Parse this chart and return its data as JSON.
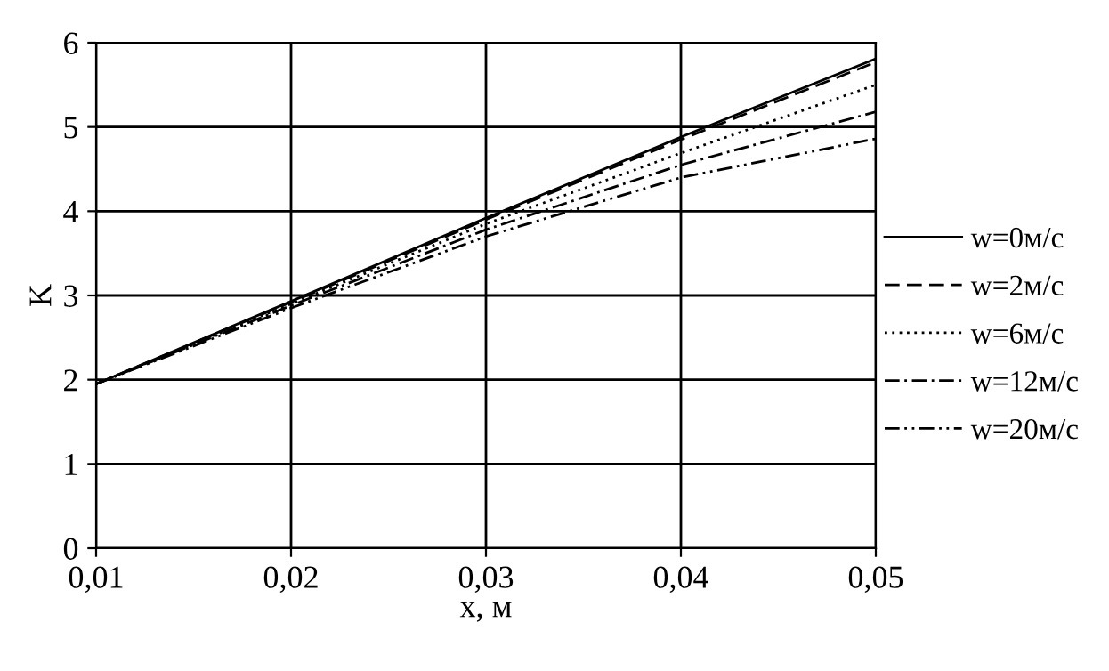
{
  "chart_data": {
    "type": "line",
    "xlabel": "x, м",
    "ylabel": "K",
    "x": [
      0.01,
      0.02,
      0.03,
      0.04,
      0.05
    ],
    "series": [
      {
        "name": "w=0м/с",
        "color": "#000000",
        "line_style": "solid",
        "values": [
          1.95,
          2.93,
          3.92,
          4.88,
          5.81
        ]
      },
      {
        "name": "w=2м/с",
        "color": "#000000",
        "line_style": "dashed",
        "values": [
          1.95,
          2.92,
          3.9,
          4.85,
          5.77
        ]
      },
      {
        "name": "w=6м/с",
        "color": "#000000",
        "line_style": "dotted",
        "values": [
          1.95,
          2.9,
          3.85,
          4.69,
          5.5
        ]
      },
      {
        "name": "w=12м/с",
        "color": "#000000",
        "line_style": "dashdot",
        "values": [
          1.95,
          2.88,
          3.78,
          4.55,
          5.18
        ]
      },
      {
        "name": "w=20м/с",
        "color": "#000000",
        "line_style": "dashdotdot",
        "values": [
          1.95,
          2.85,
          3.7,
          4.4,
          4.86
        ]
      }
    ],
    "xlim": [
      0.01,
      0.05
    ],
    "xticks": [
      {
        "value": 0.01,
        "label": "0,01"
      },
      {
        "value": 0.02,
        "label": "0,02"
      },
      {
        "value": 0.03,
        "label": "0,03"
      },
      {
        "value": 0.04,
        "label": "0,04"
      },
      {
        "value": 0.05,
        "label": "0,05"
      }
    ],
    "ylim": [
      0,
      6
    ],
    "yticks": [
      0,
      1,
      2,
      3,
      4,
      5,
      6
    ],
    "grid": true,
    "legend": "right",
    "marker": "none"
  }
}
